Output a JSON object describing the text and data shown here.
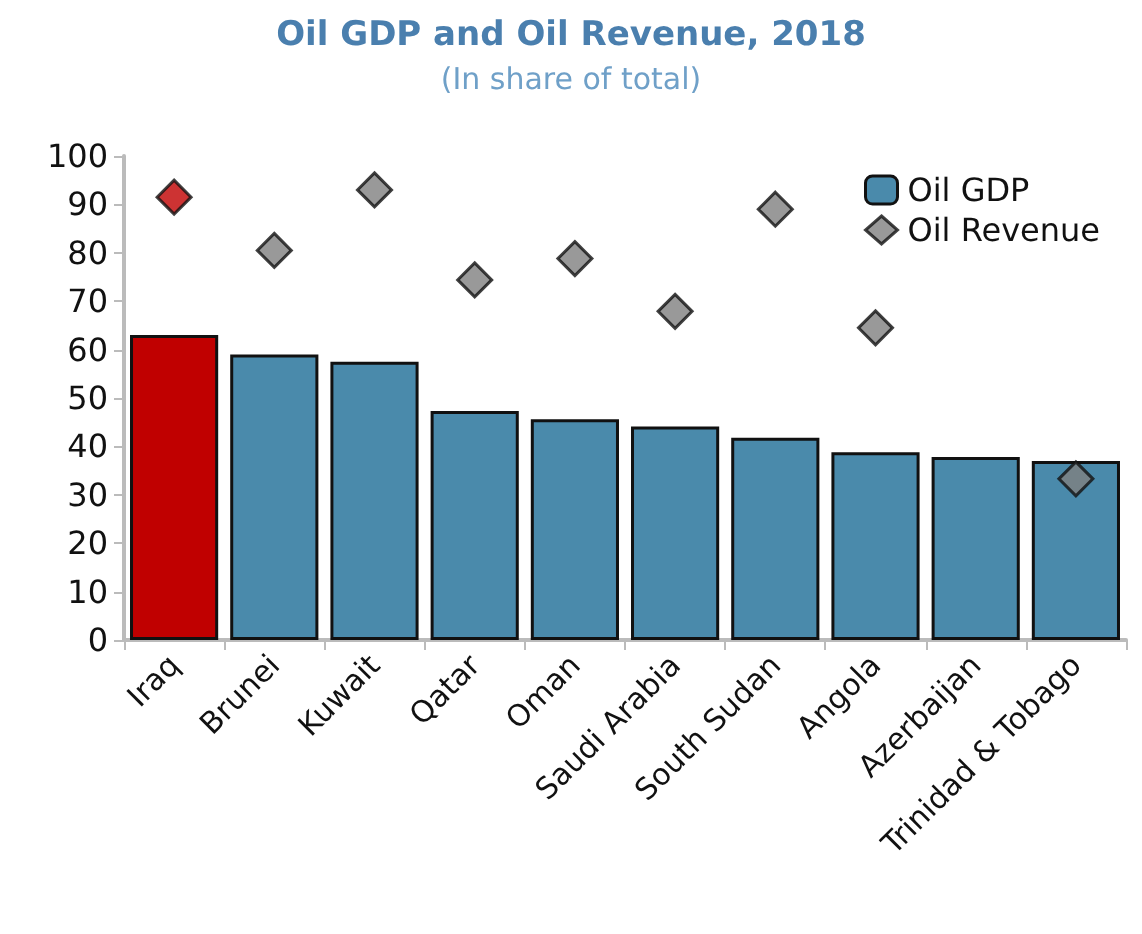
{
  "chart_data": {
    "type": "bar",
    "title": "Oil GDP and Oil Revenue, 2018",
    "subtitle": "(In share of total)",
    "categories": [
      "Iraq",
      "Brunei",
      "Kuwait",
      "Qatar",
      "Oman",
      "Saudi Arabia",
      "South Sudan",
      "Angola",
      "Azerbaijan",
      "Trinidad & Tobago"
    ],
    "series": [
      {
        "name": "Oil GDP",
        "color": "#4a8aab",
        "colors": [
          "#c00000",
          "#4a8aab",
          "#4a8aab",
          "#4a8aab",
          "#4a8aab",
          "#4a8aab",
          "#4a8aab",
          "#4a8aab",
          "#4a8aab",
          "#4a8aab"
        ],
        "values": [
          63,
          59,
          57.5,
          47.3,
          45.6,
          44.1,
          41.8,
          38.8,
          37.8,
          37
        ]
      },
      {
        "name": "Oil Revenue",
        "type": "scatter",
        "color": "#808080",
        "colors": [
          "#c00000",
          "#808080",
          "#808080",
          "#808080",
          "#808080",
          "#808080",
          "#808080",
          "#808080",
          "#808080",
          "#808080"
        ],
        "marker": "diamond",
        "values": [
          91.5,
          80.5,
          93,
          74.4,
          78.8,
          67.9,
          89,
          64.5,
          null,
          33.3
        ]
      }
    ],
    "ylim": [
      0,
      100
    ],
    "yticks": [
      0,
      10,
      20,
      30,
      40,
      50,
      60,
      70,
      80,
      90,
      100
    ],
    "grid": false,
    "legend": "top right"
  }
}
